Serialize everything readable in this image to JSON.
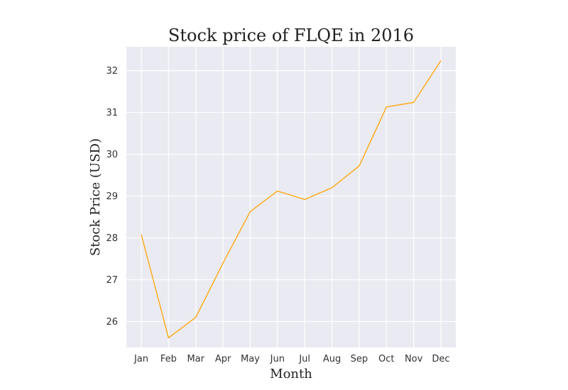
{
  "colors": {
    "plot_background": "#eaeaf2",
    "grid": "#ffffff",
    "line": "#ffa500",
    "text": "#222222"
  },
  "chart_data": {
    "type": "line",
    "title": "Stock price of FLQE in 2016",
    "xlabel": "Month",
    "ylabel": "Stock Price (USD)",
    "categories": [
      "Jan",
      "Feb",
      "Mar",
      "Apr",
      "May",
      "Jun",
      "Jul",
      "Aug",
      "Sep",
      "Oct",
      "Nov",
      "Dec"
    ],
    "series": [
      {
        "values": [
          28.08,
          25.61,
          26.1,
          27.4,
          28.63,
          29.12,
          28.92,
          29.2,
          29.72,
          31.13,
          31.24,
          32.24
        ]
      }
    ],
    "ylim": [
      25.38,
      32.57
    ],
    "yticks": [
      26,
      27,
      28,
      29,
      30,
      31,
      32
    ],
    "grid": true,
    "legend": "none"
  }
}
